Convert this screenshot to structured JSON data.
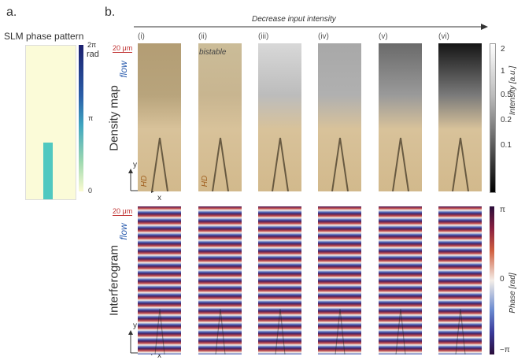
{
  "panel_a": {
    "label": "a.",
    "title": "SLM phase pattern",
    "colorbar_ticks": [
      "2π",
      "π",
      "0"
    ],
    "colorbar_unit": "rad"
  },
  "panel_b": {
    "label": "b.",
    "arrow_label": "Decrease input intensity",
    "columns": [
      "(i)",
      "(ii)",
      "(iii)",
      "(iv)",
      "(v)",
      "(vi)"
    ],
    "rows": [
      "Density map",
      "Interferogram"
    ],
    "scale_bars": [
      "20 μm",
      "20 μm"
    ],
    "flow_labels": [
      "flow",
      "flow"
    ],
    "annotation": "bistable",
    "hd_labels": [
      "HD",
      "HD"
    ],
    "axes": [
      {
        "y": "y",
        "x": "x"
      },
      {
        "y": "y",
        "x": "x"
      }
    ],
    "intensity_colorbar": {
      "ticks": [
        "2",
        "1",
        "0.5",
        "0.2",
        "0.1"
      ],
      "title": "Intensity [a.u.]"
    },
    "phase_colorbar": {
      "ticks": [
        "π",
        "0",
        "−π"
      ],
      "title": "Phase [rad]"
    }
  }
}
